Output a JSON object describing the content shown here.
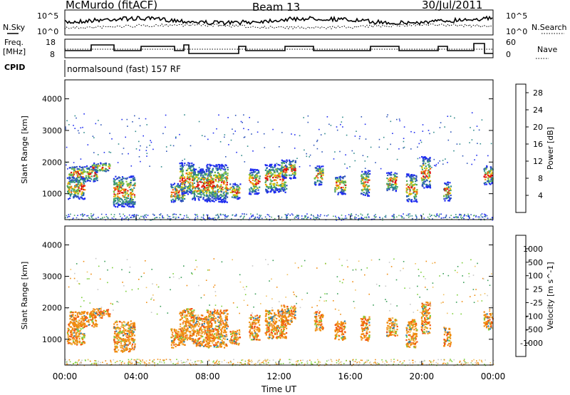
{
  "header": {
    "station": "McMurdo (fitACF)",
    "beam": "Beam 13",
    "date": "30/Jul/2011"
  },
  "noise_panel": {
    "left_label": "N.Sky",
    "right_label": "N.Search",
    "tick_top": "10^5",
    "tick_bottom": "10^0"
  },
  "freq_panel": {
    "left_label_line1": "Freq.",
    "left_label_line2": "[MHz]",
    "right_label": "Nave",
    "left_ticks": [
      "18",
      "8"
    ],
    "right_ticks": [
      "60",
      "0"
    ]
  },
  "cpid": {
    "label": "CPID",
    "value": "normalsound (fast) 157 RF"
  },
  "chart_data": [
    {
      "type": "heatmap",
      "title": "",
      "ylabel": "Slant Range [km]",
      "xlabel": "",
      "ylim": [
        180,
        4600
      ],
      "xlim": [
        "00:00",
        "24:00"
      ],
      "y_ticks": [
        "1000",
        "2000",
        "3000",
        "4000"
      ],
      "colorbar": {
        "label": "Power [dB]",
        "ticks": [
          "4",
          "8",
          "12",
          "16",
          "20",
          "24",
          "28"
        ],
        "range": [
          0,
          30
        ],
        "colors": [
          "#1e2cf0",
          "#2f55b8",
          "#2f8a8a",
          "#4aa860",
          "#80c040",
          "#e2c800",
          "#f19a10",
          "#f06010",
          "#e01010"
        ]
      }
    },
    {
      "type": "heatmap",
      "title": "",
      "ylabel": "Slant Range [km]",
      "xlabel": "Time UT",
      "ylim": [
        180,
        4600
      ],
      "xlim": [
        "00:00",
        "24:00"
      ],
      "x_ticks": [
        "00:00",
        "04:00",
        "08:00",
        "12:00",
        "16:00",
        "20:00",
        "00:00"
      ],
      "y_ticks": [
        "1000",
        "2000",
        "3000",
        "4000"
      ],
      "colorbar": {
        "label": "Velocity [m s^-1]",
        "ticks": [
          "1000",
          "500",
          "100",
          "25",
          "-25",
          "-100",
          "-500",
          "-1000"
        ],
        "colors": [
          "#2a3fc4",
          "#2f7fa8",
          "#3a9e58",
          "#7ccf3a",
          "#c8c8c8",
          "#f0c060",
          "#f08c10",
          "#f05010",
          "#e01010"
        ]
      }
    }
  ]
}
